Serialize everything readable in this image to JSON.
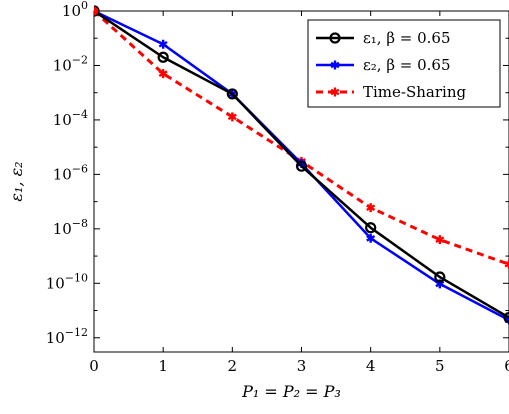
{
  "chart_data": {
    "type": "line",
    "xlabel": "P₁ = P₂ = P₃",
    "ylabel": "ε₁, ε₂",
    "y_scale": "log",
    "xlim": [
      0,
      6
    ],
    "ylim": [
      3e-13,
      1
    ],
    "grid": false,
    "legend_position": "top-right",
    "x_ticks": [
      0,
      1,
      2,
      3,
      4,
      5,
      6
    ],
    "x_tick_labels": [
      "0",
      "1",
      "2",
      "3",
      "4",
      "5",
      "6"
    ],
    "y_ticks": [
      {
        "value": 1,
        "base": "10",
        "exp": "0"
      },
      {
        "value": 0.01,
        "base": "10",
        "exp": "−2"
      },
      {
        "value": 0.0001,
        "base": "10",
        "exp": "−4"
      },
      {
        "value": 1e-06,
        "base": "10",
        "exp": "−6"
      },
      {
        "value": 1e-08,
        "base": "10",
        "exp": "−8"
      },
      {
        "value": 1e-10,
        "base": "10",
        "exp": "−10"
      },
      {
        "value": 1e-12,
        "base": "10",
        "exp": "−12"
      }
    ],
    "series": [
      {
        "name": "ε₁, β = 0.65",
        "color": "#000000",
        "line_style": "solid",
        "marker": "circle",
        "x": [
          0,
          1,
          2,
          3,
          4,
          5,
          6
        ],
        "y": [
          1,
          0.02,
          0.0009,
          2e-06,
          1.1e-08,
          1.7e-10,
          5.5e-12
        ]
      },
      {
        "name": "ε₂, β = 0.65",
        "color": "#0000ff",
        "line_style": "solid",
        "marker": "star",
        "x": [
          0,
          1,
          2,
          3,
          4,
          5,
          6
        ],
        "y": [
          1,
          0.06,
          0.0009,
          2.5e-06,
          4.5e-09,
          9.5e-11,
          4.5e-12
        ]
      },
      {
        "name": "Time-Sharing",
        "color": "#ff0000",
        "line_style": "dashed",
        "marker": "star",
        "x": [
          0,
          1,
          2,
          3,
          4,
          5,
          6
        ],
        "y": [
          1,
          0.005,
          0.00013,
          3e-06,
          6e-08,
          4e-09,
          5e-10
        ]
      }
    ],
    "start_marker_color": "#ff0000"
  }
}
